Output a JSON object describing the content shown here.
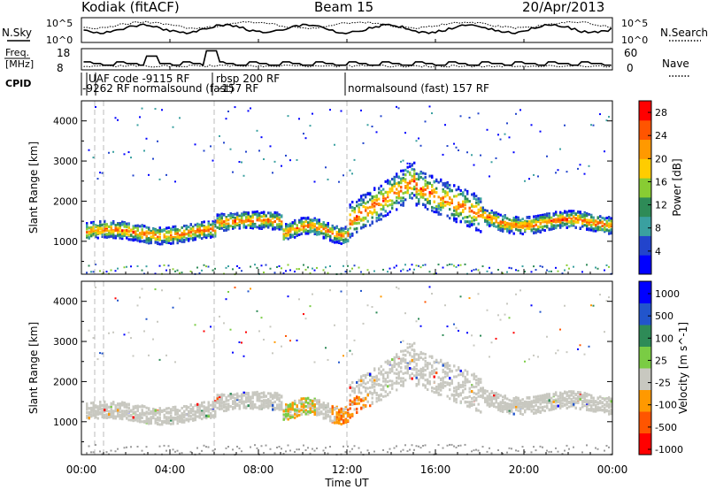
{
  "header": {
    "station": "Kodiak (fitACF)",
    "beam": "Beam 15",
    "date": "20/Apr/2013"
  },
  "noise_panel": {
    "left_label": "N.Sky",
    "right_label": "N.Search",
    "left_ticks": [
      "10^5",
      "10^0"
    ],
    "right_ticks": [
      "10^5",
      "10^0"
    ]
  },
  "freq_panel": {
    "left_label_line1": "Freq.",
    "left_label_line2": "[MHz]",
    "right_label": "Nave",
    "left_ticks": [
      "18",
      "8"
    ],
    "right_ticks": [
      "60",
      "0"
    ]
  },
  "cpid": {
    "label": "CPID",
    "entries": [
      "UAF code -9115 RF",
      "-9262 RF",
      "normalsound (fast)",
      "rbsp 200 RF",
      "-157 RF",
      "normalsound (fast) 157 RF"
    ]
  },
  "colors": {
    "power": [
      "#0000ff",
      "#2244cc",
      "#3aa0a0",
      "#2e8b57",
      "#88cc33",
      "#ffcc00",
      "#ff9900",
      "#ff5500",
      "#ff0000"
    ],
    "velocity": [
      "#ff0000",
      "#ff5500",
      "#ff9900",
      "#c8c8c0",
      "#7acc44",
      "#2e8b57",
      "#2255cc",
      "#0000ff"
    ],
    "ground": "#9a9a9a"
  },
  "chart_data": [
    {
      "type": "heatmap",
      "title": "Power",
      "ylabel": "Slant Range [km]",
      "xlabel": "Time UT",
      "x_ticks": [
        "00:00",
        "04:00",
        "08:00",
        "12:00",
        "16:00",
        "20:00",
        "00:00"
      ],
      "y_ticks": [
        1000,
        2000,
        3000,
        4000
      ],
      "ylim": [
        180,
        4500
      ],
      "xlim_hours": [
        0,
        24
      ],
      "colorbar": {
        "label": "Power [dB]",
        "ticks": [
          4,
          8,
          12,
          16,
          20,
          24,
          28
        ],
        "range": [
          0,
          30
        ]
      }
    },
    {
      "type": "heatmap",
      "title": "Velocity",
      "ylabel": "Slant Range [km]",
      "xlabel": "Time UT",
      "x_ticks": [
        "00:00",
        "04:00",
        "08:00",
        "12:00",
        "16:00",
        "20:00",
        "00:00"
      ],
      "y_ticks": [
        1000,
        2000,
        3000,
        4000
      ],
      "ylim": [
        180,
        4500
      ],
      "xlim_hours": [
        0,
        24
      ],
      "colorbar": {
        "label": "Velocity [m s^-1]",
        "ticks": [
          "1000",
          "500",
          "100",
          "25",
          "-25",
          "-100",
          "-500",
          "-1000"
        ]
      }
    }
  ]
}
